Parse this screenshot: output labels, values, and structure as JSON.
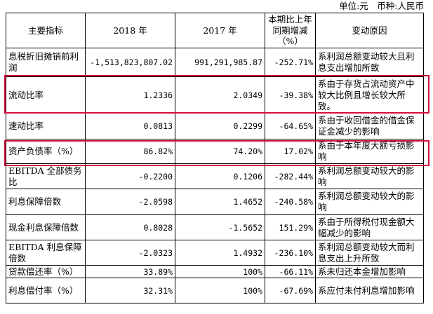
{
  "unit_line": "单位:元　币种:人民币",
  "table": {
    "headers": [
      "主要指标",
      "2018 年",
      "2017 年",
      "本期比上年同期增减（%）",
      "变动原因"
    ],
    "rows": [
      {
        "indicator": "息税折旧摊销前利润",
        "y2018": "-1,513,823,807.02",
        "y2017": "991,291,985.87",
        "change": "-252.71%",
        "reason": "系利润总额变动较大且利息支出增加所致"
      },
      {
        "indicator": "流动比率",
        "y2018": "1.2336",
        "y2017": "2.0349",
        "change": "-39.38%",
        "reason": "系由于存货占流动资产中较大比例且增长较大所致。"
      },
      {
        "indicator": "速动比率",
        "y2018": "0.0813",
        "y2017": "0.2299",
        "change": "-64.65%",
        "reason": "系由于收回借金的借金保证金减少的影响"
      },
      {
        "indicator": "资产负债率（%）",
        "y2018": "86.82%",
        "y2017": "74.20%",
        "change": "17.02%",
        "reason": "系由于本年度大额亏损影响"
      },
      {
        "indicator": "EBITDA 全部债务比",
        "y2018": "-0.2200",
        "y2017": "0.1206",
        "change": "-282.44%",
        "reason": "系利润总额变动较大的影响"
      },
      {
        "indicator": "利息保障倍数",
        "y2018": "-2.0598",
        "y2017": "1.4652",
        "change": "-240.58%",
        "reason": "系利润总额变动较大的影响"
      },
      {
        "indicator": "现金利息保障倍数",
        "y2018": "0.8028",
        "y2017": "-1.5652",
        "change": "151.29%",
        "reason": "系由于所得税付现金额大幅减少的影响"
      },
      {
        "indicator": "EBITDA 利息保障倍数",
        "y2018": "-2.0323",
        "y2017": "1.4932",
        "change": "-236.10%",
        "reason": "系利润总额变动较大而利息支出上升所致"
      },
      {
        "indicator": "贷款偿还率（%）",
        "y2018": "33.89%",
        "y2017": "100%",
        "change": "-66.11%",
        "reason": "系未归还本金增加影响"
      },
      {
        "indicator": "利息偿付率（%）",
        "y2018": "32.31%",
        "y2017": "100%",
        "change": "-67.69%",
        "reason": "系应付未付利息增加影响"
      }
    ]
  },
  "highlight_color": "#d0103a"
}
